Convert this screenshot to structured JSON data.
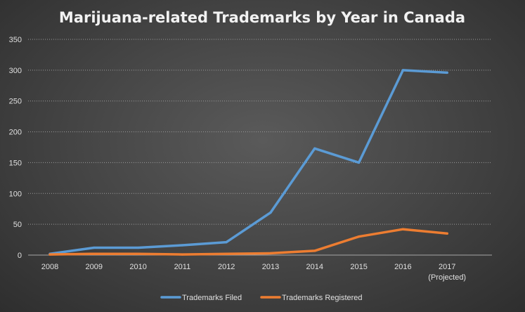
{
  "chart_data": {
    "type": "line",
    "title": "Marijuana-related Trademarks by Year in Canada",
    "xlabel": "",
    "ylabel": "",
    "categories": [
      "2008",
      "2009",
      "2010",
      "2011",
      "2012",
      "2013",
      "2014",
      "2015",
      "2016",
      "2017"
    ],
    "category_sublabels": [
      "",
      "",
      "",
      "",
      "",
      "",
      "",
      "",
      "",
      "(Projected)"
    ],
    "ylim": [
      0,
      350
    ],
    "yticks": [
      0,
      50,
      100,
      150,
      200,
      250,
      300,
      350
    ],
    "grid": true,
    "legend_position": "bottom",
    "series": [
      {
        "name": "Trademarks Filed",
        "color": "#5b9bd5",
        "values": [
          2,
          12,
          12,
          16,
          21,
          69,
          173,
          150,
          300,
          296
        ]
      },
      {
        "name": "Trademarks Registered",
        "color": "#ed7d31",
        "values": [
          1,
          2,
          2,
          1,
          2,
          3,
          7,
          30,
          42,
          35
        ]
      }
    ]
  }
}
